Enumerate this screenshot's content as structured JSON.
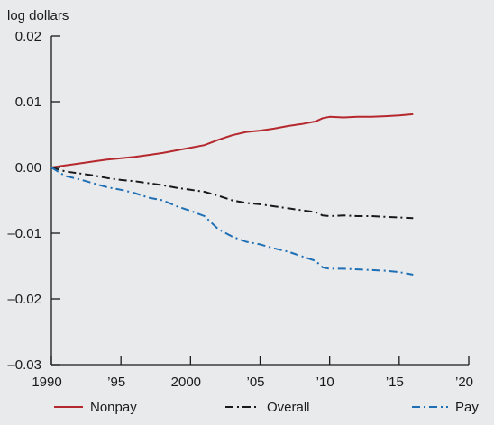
{
  "chart_data": {
    "type": "line",
    "ylabel": "log dollars",
    "xlim": [
      1990,
      2020
    ],
    "ylim": [
      -0.03,
      0.02
    ],
    "x_ticks": [
      1990,
      1995,
      2000,
      2005,
      2010,
      2015,
      2020
    ],
    "x_tick_labels": [
      "1990",
      "’95",
      "2000",
      "’05",
      "’10",
      "’15",
      "’20"
    ],
    "y_ticks": [
      0.02,
      0.01,
      0.0,
      -0.01,
      -0.02,
      -0.03
    ],
    "y_tick_labels": [
      "0.02",
      "0.01",
      "0.00",
      "–0.01",
      "–0.02",
      "–0.03"
    ],
    "grid": false,
    "legend_position": "bottom",
    "series": [
      {
        "name": "Nonpay",
        "color": "#b5282e",
        "dash": "solid",
        "points": [
          [
            1990,
            0.0
          ],
          [
            1991,
            0.0003
          ],
          [
            1992,
            0.0006
          ],
          [
            1993,
            0.0009
          ],
          [
            1994,
            0.0012
          ],
          [
            1995,
            0.0014
          ],
          [
            1996,
            0.0016
          ],
          [
            1997,
            0.0019
          ],
          [
            1998,
            0.0022
          ],
          [
            1999,
            0.0026
          ],
          [
            2000,
            0.003
          ],
          [
            2001,
            0.0034
          ],
          [
            2002,
            0.0042
          ],
          [
            2003,
            0.0049
          ],
          [
            2004,
            0.0054
          ],
          [
            2005,
            0.0056
          ],
          [
            2006,
            0.0059
          ],
          [
            2007,
            0.0063
          ],
          [
            2008,
            0.0066
          ],
          [
            2009,
            0.007
          ],
          [
            2009.5,
            0.0075
          ],
          [
            2010,
            0.0077
          ],
          [
            2011,
            0.0076
          ],
          [
            2012,
            0.0077
          ],
          [
            2013,
            0.0077
          ],
          [
            2014,
            0.0078
          ],
          [
            2015,
            0.0079
          ],
          [
            2016,
            0.0081
          ]
        ]
      },
      {
        "name": "Overall",
        "color": "#1a1a1a",
        "dash": "dashdot",
        "points": [
          [
            1990,
            0.0
          ],
          [
            1991,
            -0.0006
          ],
          [
            1992,
            -0.0009
          ],
          [
            1993,
            -0.0012
          ],
          [
            1994,
            -0.0016
          ],
          [
            1995,
            -0.0019
          ],
          [
            1996,
            -0.0021
          ],
          [
            1997,
            -0.0024
          ],
          [
            1998,
            -0.0027
          ],
          [
            1999,
            -0.0031
          ],
          [
            2000,
            -0.0034
          ],
          [
            2001,
            -0.0037
          ],
          [
            2002,
            -0.0043
          ],
          [
            2003,
            -0.005
          ],
          [
            2004,
            -0.0054
          ],
          [
            2005,
            -0.0056
          ],
          [
            2006,
            -0.0059
          ],
          [
            2007,
            -0.0062
          ],
          [
            2008,
            -0.0065
          ],
          [
            2009,
            -0.0068
          ],
          [
            2009.5,
            -0.0073
          ],
          [
            2010,
            -0.0074
          ],
          [
            2011,
            -0.0073
          ],
          [
            2012,
            -0.0074
          ],
          [
            2013,
            -0.0074
          ],
          [
            2014,
            -0.0075
          ],
          [
            2015,
            -0.0076
          ],
          [
            2016,
            -0.0077
          ]
        ]
      },
      {
        "name": "Pay",
        "color": "#1e6fb5",
        "dash": "dashdot",
        "points": [
          [
            1990,
            0.0
          ],
          [
            1991,
            -0.0013
          ],
          [
            1992,
            -0.0018
          ],
          [
            1993,
            -0.0024
          ],
          [
            1994,
            -0.003
          ],
          [
            1995,
            -0.0034
          ],
          [
            1996,
            -0.0039
          ],
          [
            1997,
            -0.0046
          ],
          [
            1998,
            -0.005
          ],
          [
            1999,
            -0.0059
          ],
          [
            2000,
            -0.0066
          ],
          [
            2001,
            -0.0074
          ],
          [
            2002,
            -0.0094
          ],
          [
            2003,
            -0.0105
          ],
          [
            2004,
            -0.0113
          ],
          [
            2005,
            -0.0117
          ],
          [
            2006,
            -0.0123
          ],
          [
            2007,
            -0.0128
          ],
          [
            2008,
            -0.0135
          ],
          [
            2009,
            -0.0142
          ],
          [
            2009.5,
            -0.0152
          ],
          [
            2010,
            -0.0154
          ],
          [
            2011,
            -0.0154
          ],
          [
            2012,
            -0.0155
          ],
          [
            2013,
            -0.0156
          ],
          [
            2014,
            -0.0157
          ],
          [
            2015,
            -0.0159
          ],
          [
            2016,
            -0.0163
          ]
        ]
      }
    ]
  }
}
